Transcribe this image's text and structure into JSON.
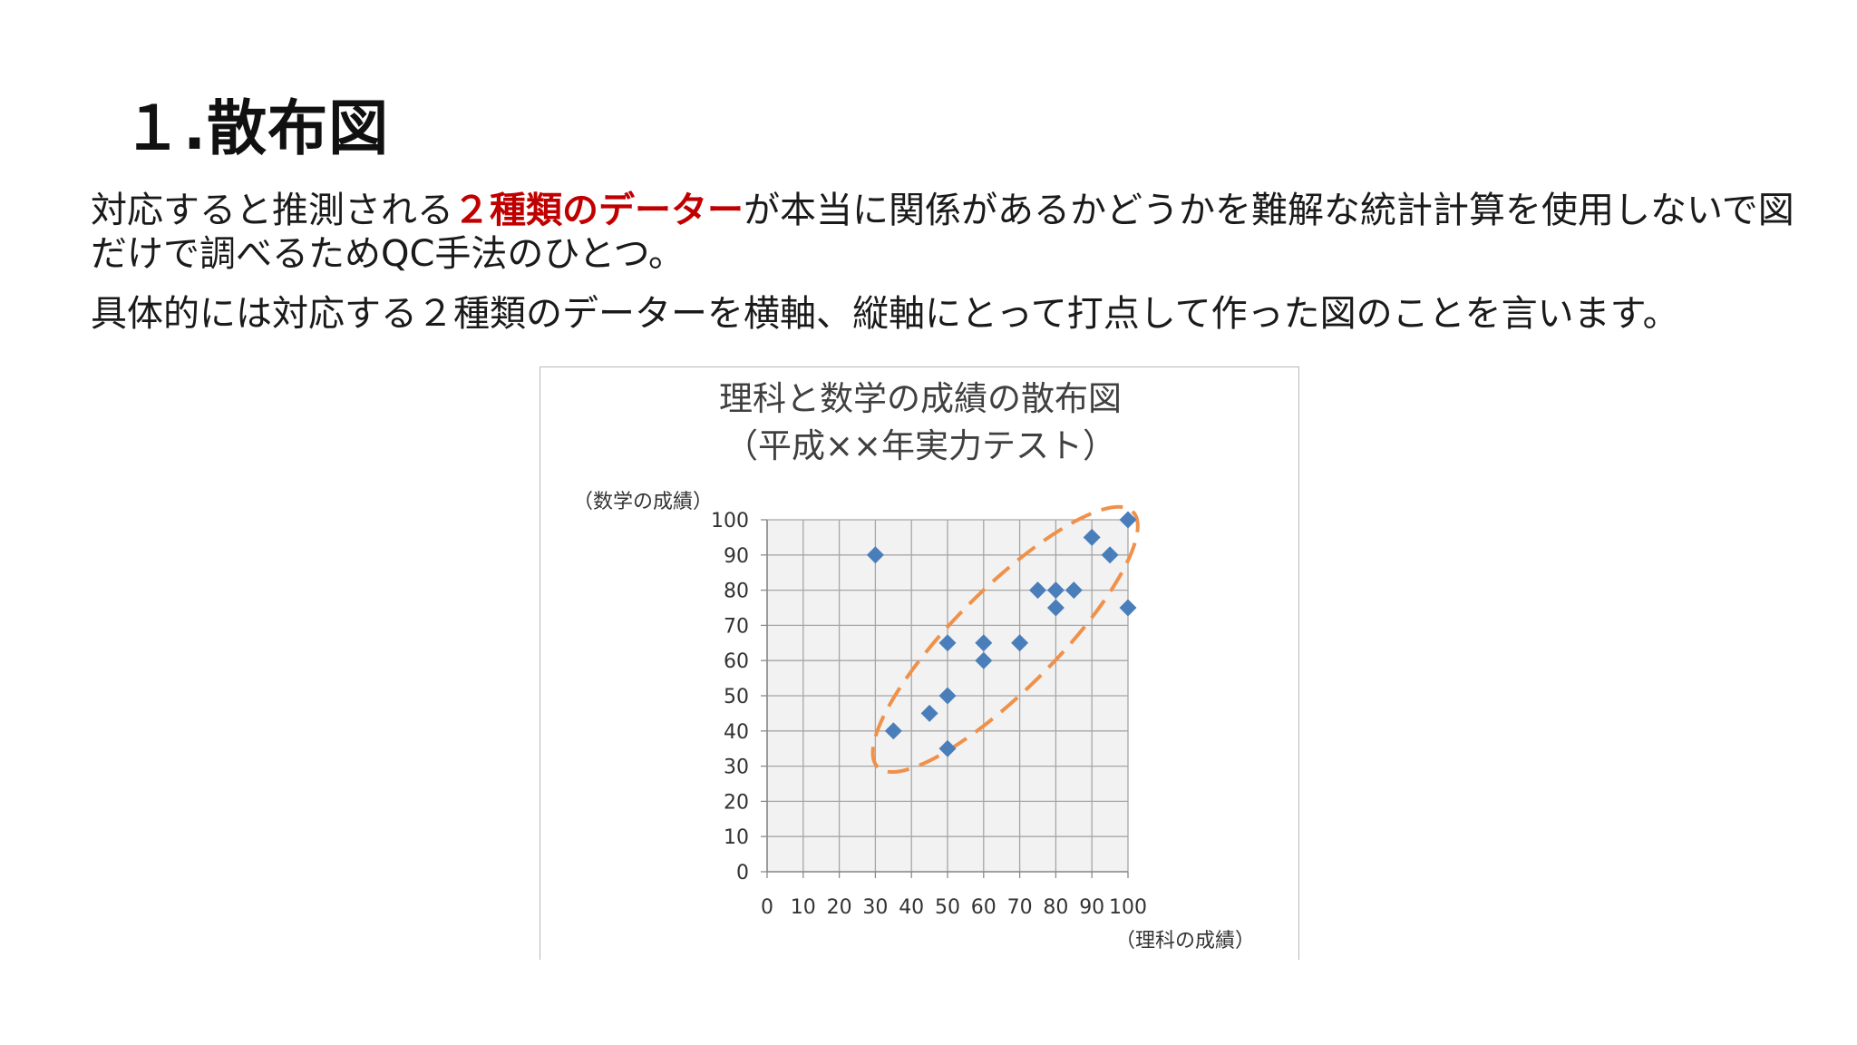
{
  "slide": {
    "title": "１.散布図",
    "p1_before": "対応すると推測される",
    "p1_accent": "２種類のデーター",
    "p1_after": "が本当に関係があるかどうかを難解な統計計算を使用しないで図だけで調べるためQC手法のひとつ。",
    "p2": "具体的には対応する２種類のデーターを横軸、縦軸にとって打点して作った図のことを言います。",
    "accent_color": "#c00000"
  },
  "chart_data": {
    "type": "scatter",
    "title_line1": "理科と数学の成績の散布図",
    "title_line2": "（平成××年実力テスト）",
    "xlabel": "（理科の成績）",
    "ylabel": "（数学の成績）",
    "xlim": [
      0,
      100
    ],
    "ylim": [
      0,
      100
    ],
    "x_ticks": [
      "0",
      "10",
      "20",
      "30",
      "40",
      "50",
      "60",
      "70",
      "80",
      "90",
      "100"
    ],
    "y_ticks": [
      "0",
      "10",
      "20",
      "30",
      "40",
      "50",
      "60",
      "70",
      "80",
      "90",
      "100"
    ],
    "grid": true,
    "marker": "diamond",
    "marker_color": "#4a7ebb",
    "plot_bg": "#f2f2f2",
    "grid_color": "#a6a6a6",
    "ellipse_color": "#f0914a",
    "ellipse_style": "dashed",
    "points": [
      {
        "x": 30,
        "y": 90
      },
      {
        "x": 35,
        "y": 40
      },
      {
        "x": 45,
        "y": 45
      },
      {
        "x": 50,
        "y": 35
      },
      {
        "x": 50,
        "y": 50
      },
      {
        "x": 50,
        "y": 65
      },
      {
        "x": 60,
        "y": 60
      },
      {
        "x": 60,
        "y": 65
      },
      {
        "x": 70,
        "y": 65
      },
      {
        "x": 75,
        "y": 80
      },
      {
        "x": 80,
        "y": 75
      },
      {
        "x": 80,
        "y": 80
      },
      {
        "x": 85,
        "y": 80
      },
      {
        "x": 90,
        "y": 95
      },
      {
        "x": 95,
        "y": 90
      },
      {
        "x": 100,
        "y": 100
      },
      {
        "x": 100,
        "y": 75
      }
    ],
    "highlight_ellipse": {
      "cx": 66,
      "cy": 66,
      "rx": 50,
      "ry": 14,
      "angle_deg": 45
    }
  }
}
